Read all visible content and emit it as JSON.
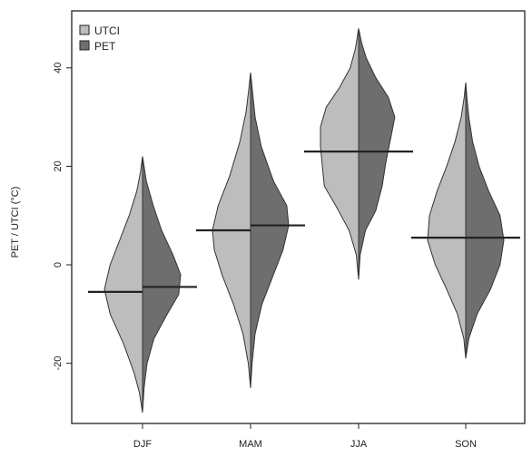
{
  "chart_data": {
    "type": "violin",
    "title": "",
    "xlabel": "",
    "ylabel": "PET / UTCI (°C)",
    "ylim": [
      -32,
      50
    ],
    "yticks": [
      -20,
      0,
      20,
      40
    ],
    "categories": [
      "DJF",
      "MAM",
      "JJA",
      "SON"
    ],
    "legend": {
      "position": "top-left"
    },
    "series": [
      {
        "name": "UTCI",
        "side": "left",
        "color": "#bdbdbd",
        "medians": [
          -5.5,
          7,
          23,
          5.5
        ],
        "ranges": [
          [
            -30,
            22
          ],
          [
            -25,
            39
          ],
          [
            -3,
            48
          ],
          [
            -19,
            37
          ]
        ],
        "profiles": [
          [
            [
              -30,
              0
            ],
            [
              -26,
              0.08
            ],
            [
              -22,
              0.22
            ],
            [
              -16,
              0.5
            ],
            [
              -10,
              0.85
            ],
            [
              -5,
              1.0
            ],
            [
              0,
              0.85
            ],
            [
              5,
              0.6
            ],
            [
              10,
              0.35
            ],
            [
              15,
              0.15
            ],
            [
              19,
              0.05
            ],
            [
              22,
              0
            ]
          ],
          [
            [
              -25,
              0
            ],
            [
              -20,
              0.06
            ],
            [
              -14,
              0.2
            ],
            [
              -8,
              0.45
            ],
            [
              -2,
              0.75
            ],
            [
              3,
              0.95
            ],
            [
              7,
              1.0
            ],
            [
              12,
              0.85
            ],
            [
              18,
              0.55
            ],
            [
              25,
              0.28
            ],
            [
              31,
              0.12
            ],
            [
              36,
              0.04
            ],
            [
              39,
              0
            ]
          ],
          [
            [
              -3,
              0
            ],
            [
              2,
              0.06
            ],
            [
              7,
              0.25
            ],
            [
              12,
              0.6
            ],
            [
              16,
              0.9
            ],
            [
              20,
              0.95
            ],
            [
              24,
              1.0
            ],
            [
              28,
              1.0
            ],
            [
              32,
              0.85
            ],
            [
              36,
              0.5
            ],
            [
              40,
              0.22
            ],
            [
              44,
              0.08
            ],
            [
              48,
              0
            ]
          ],
          [
            [
              -19,
              0
            ],
            [
              -15,
              0.05
            ],
            [
              -10,
              0.22
            ],
            [
              -5,
              0.5
            ],
            [
              0,
              0.8
            ],
            [
              5,
              1.0
            ],
            [
              10,
              0.95
            ],
            [
              15,
              0.75
            ],
            [
              20,
              0.5
            ],
            [
              25,
              0.28
            ],
            [
              30,
              0.12
            ],
            [
              34,
              0.04
            ],
            [
              37,
              0
            ]
          ]
        ]
      },
      {
        "name": "PET",
        "side": "right",
        "color": "#6e6e6e",
        "medians": [
          -4.5,
          8,
          23,
          5.5
        ],
        "ranges": [
          [
            -30,
            22
          ],
          [
            -25,
            39
          ],
          [
            -3,
            48
          ],
          [
            -19,
            37
          ]
        ],
        "profiles": [
          [
            [
              -30,
              0
            ],
            [
              -25,
              0.04
            ],
            [
              -20,
              0.12
            ],
            [
              -15,
              0.3
            ],
            [
              -10,
              0.65
            ],
            [
              -6,
              0.95
            ],
            [
              -2,
              1.0
            ],
            [
              2,
              0.8
            ],
            [
              7,
              0.5
            ],
            [
              12,
              0.28
            ],
            [
              17,
              0.1
            ],
            [
              22,
              0
            ]
          ],
          [
            [
              -25,
              0
            ],
            [
              -20,
              0.04
            ],
            [
              -14,
              0.12
            ],
            [
              -8,
              0.3
            ],
            [
              -2,
              0.6
            ],
            [
              3,
              0.85
            ],
            [
              8,
              1.0
            ],
            [
              12,
              0.95
            ],
            [
              17,
              0.6
            ],
            [
              24,
              0.28
            ],
            [
              30,
              0.12
            ],
            [
              36,
              0.04
            ],
            [
              39,
              0
            ]
          ],
          [
            [
              -3,
              0
            ],
            [
              2,
              0.04
            ],
            [
              7,
              0.18
            ],
            [
              11,
              0.45
            ],
            [
              16,
              0.62
            ],
            [
              21,
              0.72
            ],
            [
              26,
              0.85
            ],
            [
              30,
              0.95
            ],
            [
              34,
              0.78
            ],
            [
              38,
              0.45
            ],
            [
              42,
              0.2
            ],
            [
              45,
              0.08
            ],
            [
              48,
              0
            ]
          ],
          [
            [
              -19,
              0
            ],
            [
              -15,
              0.08
            ],
            [
              -10,
              0.3
            ],
            [
              -5,
              0.65
            ],
            [
              0,
              0.9
            ],
            [
              5,
              1.0
            ],
            [
              10,
              0.9
            ],
            [
              15,
              0.6
            ],
            [
              20,
              0.35
            ],
            [
              25,
              0.18
            ],
            [
              30,
              0.08
            ],
            [
              34,
              0.03
            ],
            [
              37,
              0
            ]
          ]
        ]
      }
    ]
  }
}
